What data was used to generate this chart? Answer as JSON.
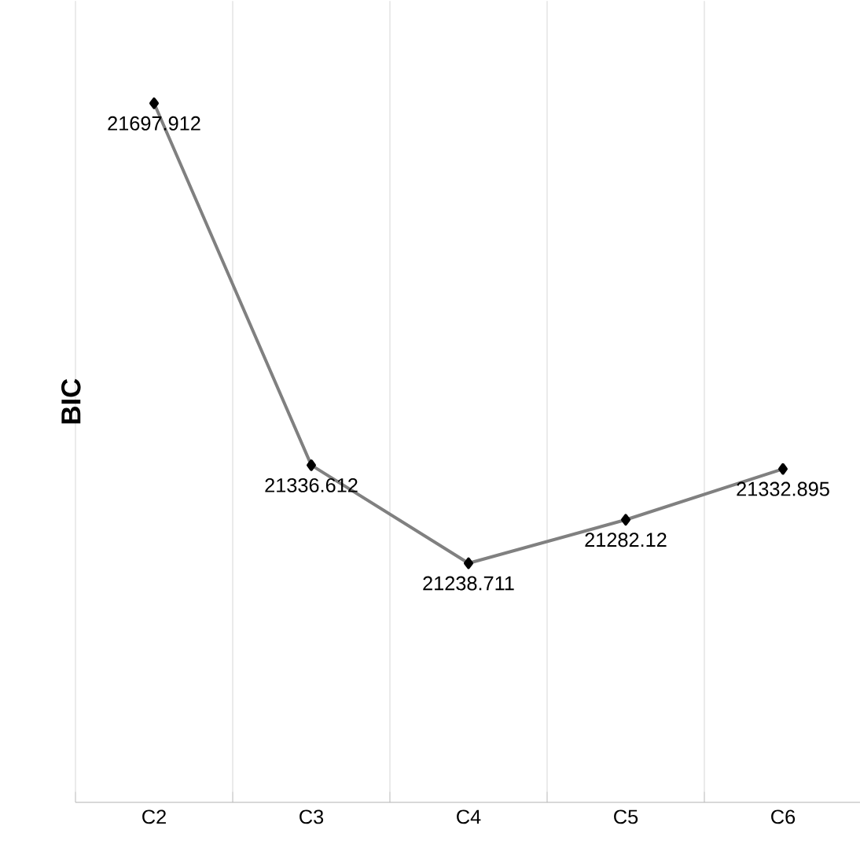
{
  "chart_data": {
    "type": "line",
    "ylabel": "BIC",
    "categories": [
      "C2",
      "C3",
      "C4",
      "C5",
      "C6"
    ],
    "values": [
      21697.912,
      21336.612,
      21238.711,
      21282.12,
      21332.895
    ],
    "color": "#808080",
    "marker": "diamond",
    "data_labels": true,
    "grid": "x",
    "tick_labels": "x",
    "ylim": [
      21000,
      21800
    ]
  }
}
